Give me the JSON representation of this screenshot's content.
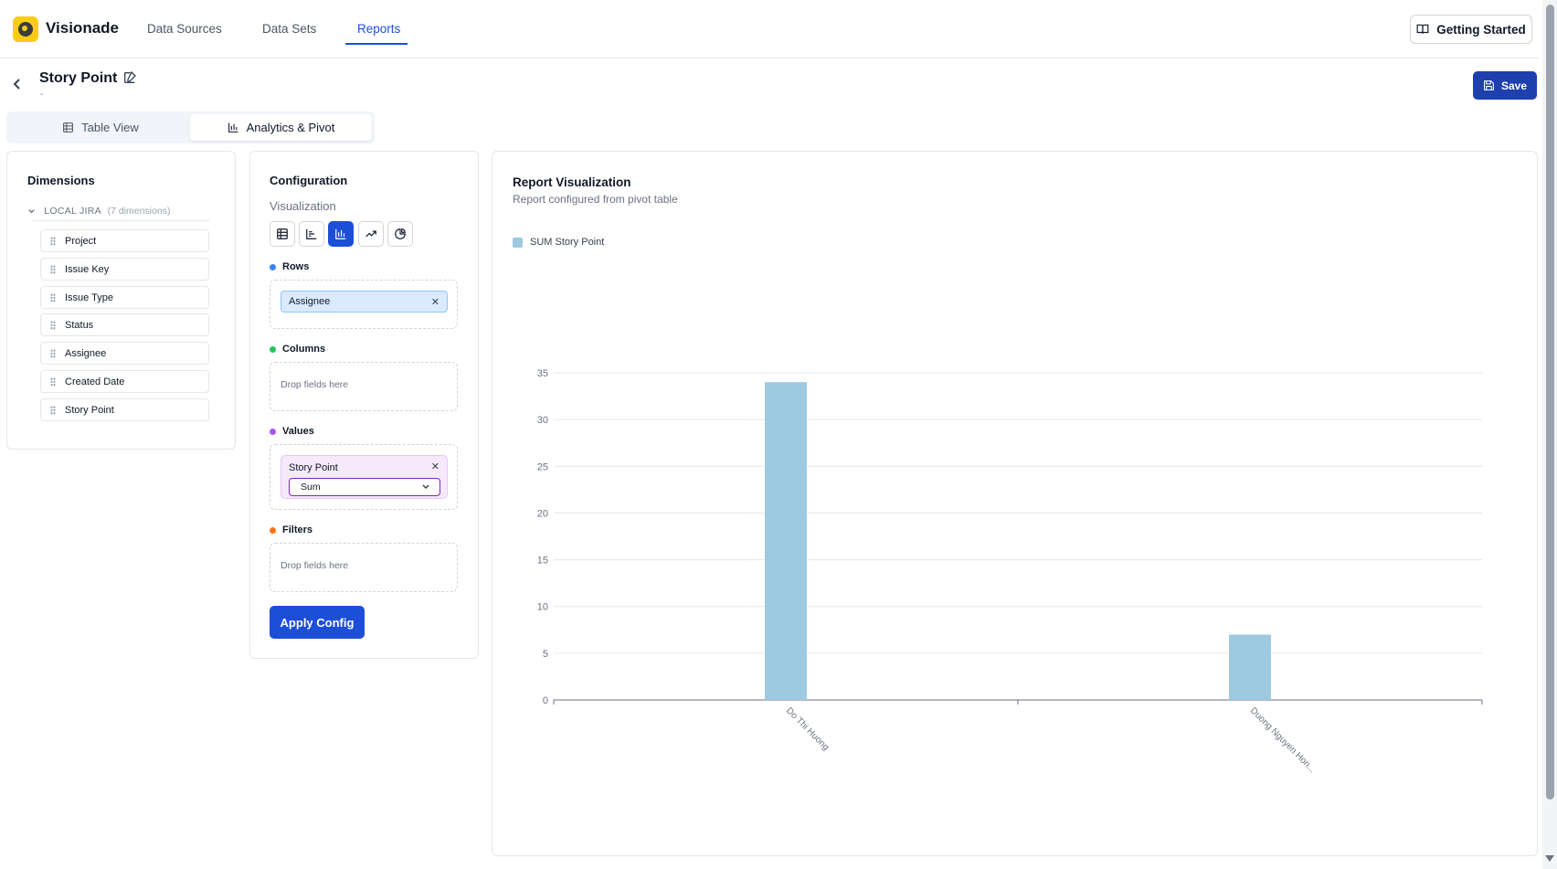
{
  "app": {
    "brand": "Visionade",
    "nav": [
      {
        "label": "Data Sources"
      },
      {
        "label": "Data Sets"
      },
      {
        "label": "Reports"
      }
    ],
    "getting_started": "Getting Started"
  },
  "header": {
    "title": "Story Point",
    "subtitle": "-",
    "save_label": "Save"
  },
  "tabs": [
    {
      "label": "Table View"
    },
    {
      "label": "Analytics & Pivot"
    }
  ],
  "dimensions": {
    "title": "Dimensions",
    "group_name": "LOCAL JIRA",
    "group_count": "(7 dimensions)",
    "items": [
      "Project",
      "Issue Key",
      "Issue Type",
      "Status",
      "Assignee",
      "Created Date",
      "Story Point"
    ]
  },
  "configuration": {
    "title": "Configuration",
    "visualization_label": "Visualization",
    "viz_types": [
      "table-icon",
      "column-chart-icon",
      "bar-chart-icon",
      "line-chart-icon",
      "pie-chart-icon"
    ],
    "rows_label": "Rows",
    "rows_chip": "Assignee",
    "columns_label": "Columns",
    "columns_placeholder": "Drop fields here",
    "values_label": "Values",
    "value_field": "Story Point",
    "aggregation": "Sum",
    "filters_label": "Filters",
    "filters_placeholder": "Drop fields here",
    "apply_label": "Apply Config",
    "colors": {
      "rows": "#3b82f6",
      "columns": "#22c55e",
      "values": "#a855f7",
      "filters": "#f97316"
    }
  },
  "visualization": {
    "title": "Report Visualization",
    "subtitle": "Report configured from pivot table",
    "legend": "SUM Story Point",
    "bar_color": "#9ecae1"
  },
  "chart_data": {
    "type": "bar",
    "categories": [
      "Do Thi Huong",
      "Duong Nguyen Hon..."
    ],
    "series": [
      {
        "name": "SUM Story Point",
        "values": [
          34,
          7
        ]
      }
    ],
    "ylim": [
      0,
      35
    ],
    "yticks": [
      0,
      5,
      10,
      15,
      20,
      25,
      30,
      35
    ],
    "grid": true,
    "legend_position": "top-left"
  }
}
